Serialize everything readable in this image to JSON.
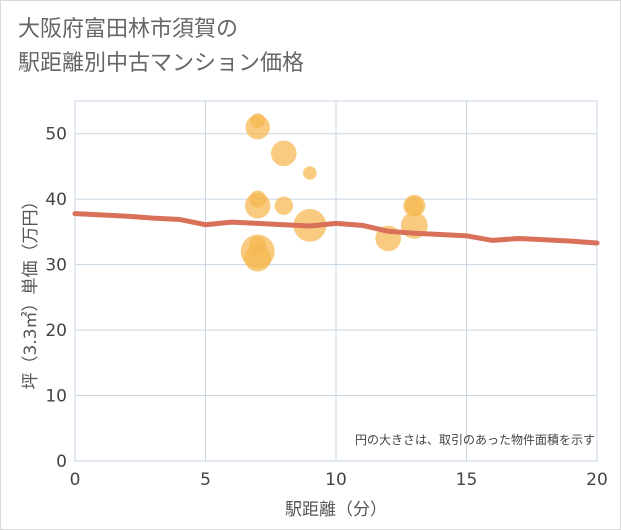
{
  "title_lines": [
    "大阪府富田林市須賀の",
    "駅距離別中古マンション価格"
  ],
  "chart_data": {
    "type": "scatter",
    "title": "大阪府富田林市須賀の駅距離別中古マンション価格",
    "xlabel": "駅距離（分）",
    "ylabel": "坪（3.3㎡）単価（万円）",
    "xlim": [
      0,
      20
    ],
    "ylim": [
      0,
      55
    ],
    "xticks": [
      0,
      5,
      10,
      15,
      20
    ],
    "yticks": [
      0,
      10,
      20,
      30,
      40,
      50
    ],
    "grid": true,
    "annotation": "円の大きさは、取引のあった物件面積を示す",
    "colors": {
      "bubble": "#f5b74f",
      "trend": "#d9705a",
      "grid": "#c9d6e4"
    },
    "bubbles": [
      {
        "x": 7,
        "y": 51,
        "size": 0.6
      },
      {
        "x": 7,
        "y": 52,
        "size": 0.2
      },
      {
        "x": 8,
        "y": 47,
        "size": 0.65
      },
      {
        "x": 9,
        "y": 44,
        "size": 0.15
      },
      {
        "x": 7,
        "y": 40,
        "size": 0.3
      },
      {
        "x": 7,
        "y": 39,
        "size": 0.65
      },
      {
        "x": 8,
        "y": 39,
        "size": 0.35
      },
      {
        "x": 9,
        "y": 36,
        "size": 0.95
      },
      {
        "x": 13,
        "y": 39,
        "size": 0.5
      },
      {
        "x": 13,
        "y": 39,
        "size": 0.35
      },
      {
        "x": 13,
        "y": 36,
        "size": 0.7
      },
      {
        "x": 12,
        "y": 34,
        "size": 0.65
      },
      {
        "x": 7,
        "y": 33,
        "size": 0.3
      },
      {
        "x": 7,
        "y": 32,
        "size": 1.0
      },
      {
        "x": 7,
        "y": 31,
        "size": 0.7
      }
    ],
    "trend": {
      "x": [
        0,
        1,
        2,
        3,
        4,
        5,
        6,
        7,
        8,
        9,
        10,
        11,
        12,
        13,
        14,
        15,
        16,
        17,
        18,
        19,
        20
      ],
      "y": [
        37.8,
        37.6,
        37.4,
        37.1,
        36.9,
        36.1,
        36.5,
        36.3,
        36.1,
        35.9,
        36.3,
        36.0,
        35.1,
        34.8,
        34.6,
        34.4,
        33.7,
        34.0,
        33.8,
        33.6,
        33.3
      ]
    }
  }
}
